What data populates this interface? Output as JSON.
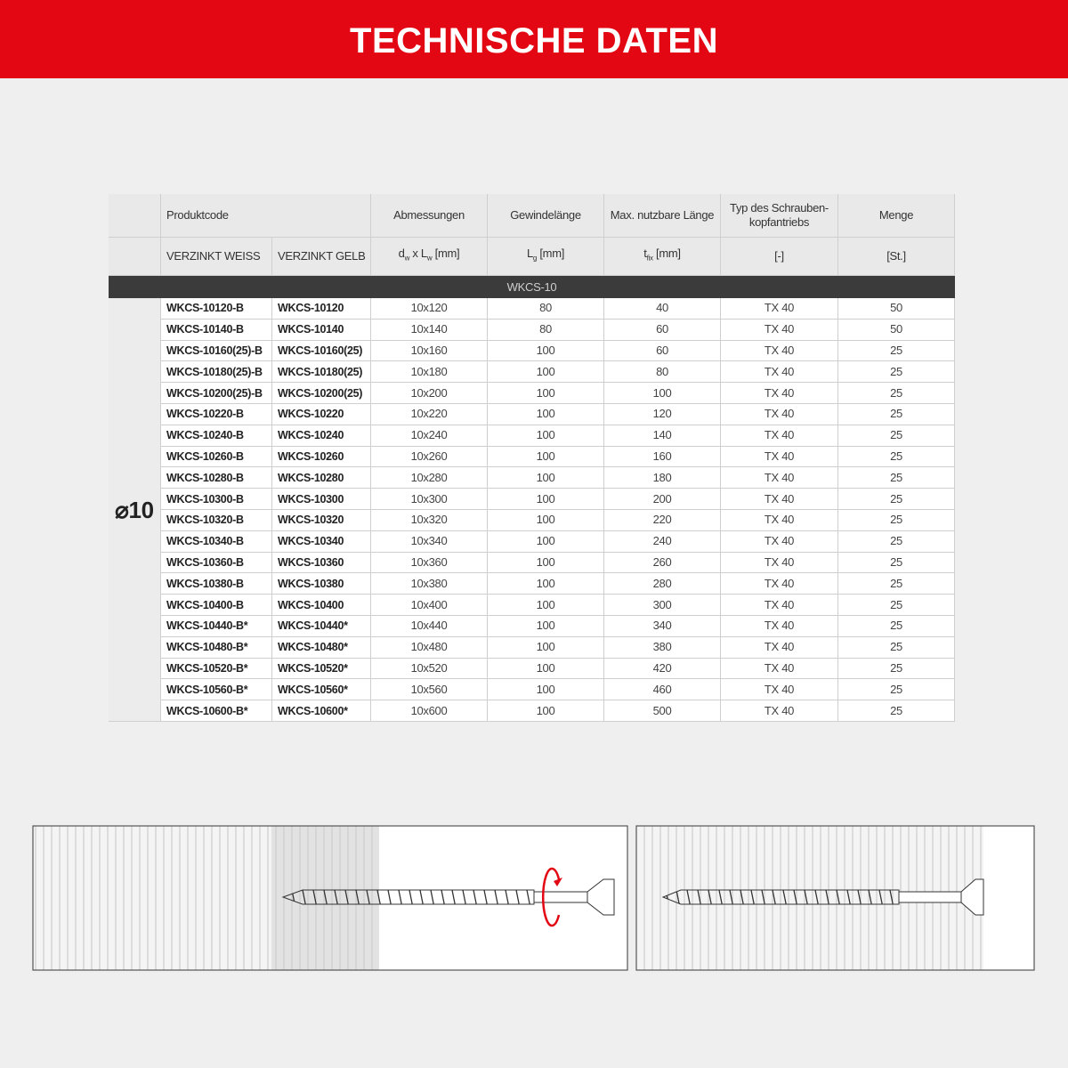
{
  "header": {
    "title": "TECHNISCHE DATEN"
  },
  "table": {
    "headers": [
      "Produktcode",
      "Abmessungen",
      "Gewindelänge",
      "Max. nutzbare Länge",
      [
        "Typ des Schrauben-",
        "kopfantriebs"
      ],
      "Menge"
    ],
    "subheaders": [
      "VERZINKT WEISS",
      "VERZINKT GELB"
    ],
    "units": [
      [
        "d",
        "w",
        " x L",
        "w",
        " [mm]"
      ],
      [
        "L",
        "g",
        " [mm]"
      ],
      [
        "t",
        "fix",
        " [mm]"
      ],
      [
        "[-]"
      ],
      [
        "[St.]"
      ]
    ],
    "group": "WKCS-10",
    "diameter": "⌀10",
    "rows": [
      [
        "WKCS-10120-B",
        "WKCS-10120",
        "10x120",
        80,
        40,
        "TX 40",
        50
      ],
      [
        "WKCS-10140-B",
        "WKCS-10140",
        "10x140",
        80,
        60,
        "TX 40",
        50
      ],
      [
        "WKCS-10160(25)-B",
        "WKCS-10160(25)",
        "10x160",
        100,
        60,
        "TX 40",
        25
      ],
      [
        "WKCS-10180(25)-B",
        "WKCS-10180(25)",
        "10x180",
        100,
        80,
        "TX 40",
        25
      ],
      [
        "WKCS-10200(25)-B",
        "WKCS-10200(25)",
        "10x200",
        100,
        100,
        "TX 40",
        25
      ],
      [
        "WKCS-10220-B",
        "WKCS-10220",
        "10x220",
        100,
        120,
        "TX 40",
        25
      ],
      [
        "WKCS-10240-B",
        "WKCS-10240",
        "10x240",
        100,
        140,
        "TX 40",
        25
      ],
      [
        "WKCS-10260-B",
        "WKCS-10260",
        "10x260",
        100,
        160,
        "TX 40",
        25
      ],
      [
        "WKCS-10280-B",
        "WKCS-10280",
        "10x280",
        100,
        180,
        "TX 40",
        25
      ],
      [
        "WKCS-10300-B",
        "WKCS-10300",
        "10x300",
        100,
        200,
        "TX 40",
        25
      ],
      [
        "WKCS-10320-B",
        "WKCS-10320",
        "10x320",
        100,
        220,
        "TX 40",
        25
      ],
      [
        "WKCS-10340-B",
        "WKCS-10340",
        "10x340",
        100,
        240,
        "TX 40",
        25
      ],
      [
        "WKCS-10360-B",
        "WKCS-10360",
        "10x360",
        100,
        260,
        "TX 40",
        25
      ],
      [
        "WKCS-10380-B",
        "WKCS-10380",
        "10x380",
        100,
        280,
        "TX 40",
        25
      ],
      [
        "WKCS-10400-B",
        "WKCS-10400",
        "10x400",
        100,
        300,
        "TX 40",
        25
      ],
      [
        "WKCS-10440-B*",
        "WKCS-10440*",
        "10x440",
        100,
        340,
        "TX 40",
        25
      ],
      [
        "WKCS-10480-B*",
        "WKCS-10480*",
        "10x480",
        100,
        380,
        "TX 40",
        25
      ],
      [
        "WKCS-10520-B*",
        "WKCS-10520*",
        "10x520",
        100,
        420,
        "TX 40",
        25
      ],
      [
        "WKCS-10560-B*",
        "WKCS-10560*",
        "10x560",
        100,
        460,
        "TX 40",
        25
      ],
      [
        "WKCS-10600-B*",
        "WKCS-10600*",
        "10x600",
        100,
        500,
        "TX 40",
        25
      ]
    ]
  }
}
